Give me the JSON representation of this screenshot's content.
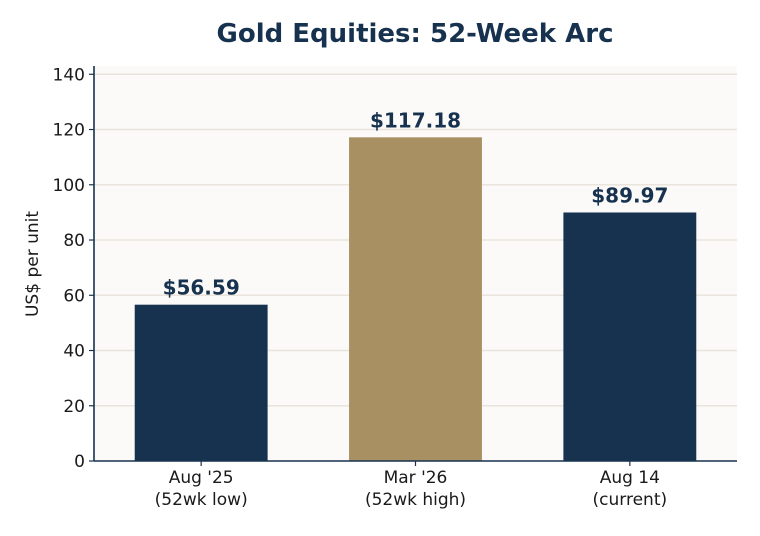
{
  "chart_data": {
    "type": "bar",
    "title": "Gold Equities: 52-Week Arc",
    "xlabel": "",
    "ylabel": "US$ per unit",
    "categories": [
      [
        "Aug '25",
        "(52wk low)"
      ],
      [
        "Mar '26",
        "(52wk high)"
      ],
      [
        "Aug 14",
        "(current)"
      ]
    ],
    "values": [
      56.59,
      117.18,
      89.97
    ],
    "value_labels": [
      "$56.59",
      "$117.18",
      "$89.97"
    ],
    "bar_colors": [
      "#17324f",
      "#a89063",
      "#17324f"
    ],
    "ylim": [
      0,
      143
    ],
    "yticks": [
      0,
      20,
      40,
      60,
      80,
      100,
      120,
      140
    ],
    "grid": true,
    "legend": "none"
  },
  "colors": {
    "plot_background": "#fbfaf9",
    "grid": "#e9e4dc",
    "axis": "#17324f",
    "title": "#17324f"
  }
}
